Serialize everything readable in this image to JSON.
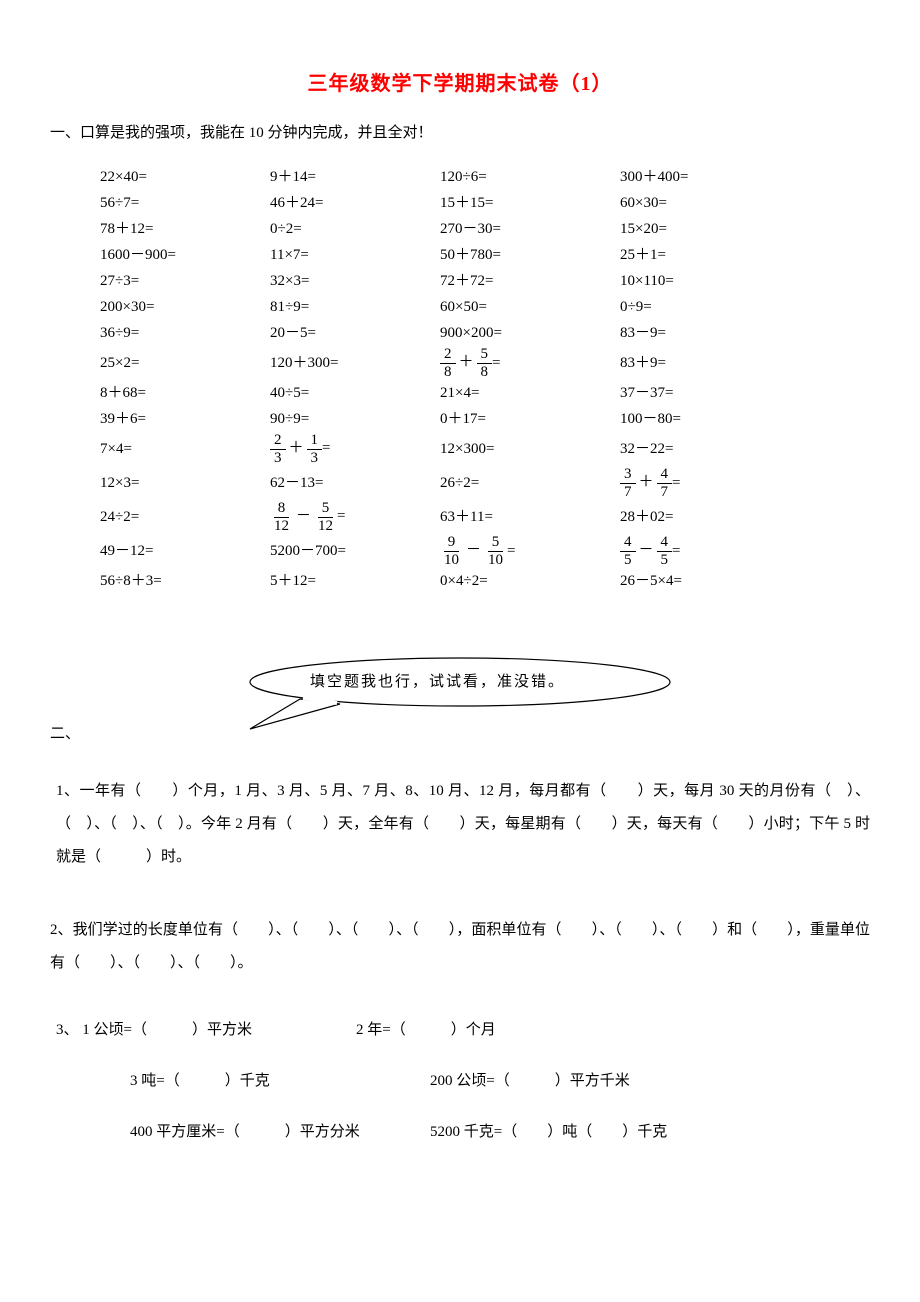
{
  "title": "三年级数学下学期期末试卷（1）",
  "section1": {
    "heading": "一、口算是我的强项，我能在 10 分钟内完成，并且全对！",
    "rows": [
      [
        "22×40=",
        "9＋14=",
        "120÷6=",
        "300＋400="
      ],
      [
        "56÷7=",
        "46＋24=",
        "15＋15=",
        "60×30="
      ],
      [
        "78＋12=",
        "0÷2=",
        "270－30=",
        "15×20="
      ],
      [
        "1600－900=",
        "11×7=",
        "50＋780=",
        "25＋1="
      ],
      [
        "27÷3=",
        "32×3=",
        "72＋72=",
        "10×110="
      ],
      [
        "200×30=",
        "81÷9=",
        "60×50=",
        "0÷9="
      ],
      [
        "36÷9=",
        "20－5=",
        "900×200=",
        "83－9="
      ],
      [
        "25×2=",
        "120＋300=",
        "__FRAC__2/8+5/8",
        "83＋9="
      ],
      [
        "8＋68=",
        "40÷5=",
        "21×4=",
        "37－37="
      ],
      [
        "39＋6=",
        "90÷9=",
        "0＋17=",
        "100－80="
      ],
      [
        "7×4=",
        "__FRAC__2/3+1/3",
        "12×300=",
        "32－22="
      ],
      [
        "12×3=",
        "62－13=",
        "26÷2=",
        "__FRAC__3/7+4/7"
      ],
      [
        "24÷2=",
        "__FRAC__8/12-5/12",
        "63＋11=",
        "28＋02="
      ],
      [
        "49－12=",
        "5200－700=",
        "__FRAC__9/10-5/10",
        "__FRAC__4/5-4/5"
      ],
      [
        "56÷8＋3=",
        "5＋12=",
        "0×4÷2=",
        "26－5×4="
      ]
    ]
  },
  "bubble_text": "填空题我也行，试试看，准没错。",
  "section2_label": "二、",
  "q1": "1、一年有（　　）个月，1 月、3 月、5 月、7 月、8、10 月、12 月，每月都有（　　）天，每月 30 天的月份有（　）、（　）、（　）、（　）。今年 2 月有（　　）天，全年有（　　）天，每星期有（　　）天，每天有（　　）小时；下午 5 时就是（　　　）时。",
  "q2": "2、我们学过的长度单位有（　　）、（　　）、（　　）、（　　），面积单位有（　　）、（　　）、（　　）和（　　），重量单位有（　　）、（　　）、（　　）。",
  "q3_head": "3、 1 公顷=（　　　）平方米",
  "q3_right": "2 年=（　　　）个月",
  "q3_row2_left": "3 吨=（　　　）千克",
  "q3_row2_right": "200 公顷=（　　　）平方千米",
  "q3_row3_left": "400 平方厘米=（　　　）平方分米",
  "q3_row3_right": "5200 千克=（　　）吨（　　）千克"
}
